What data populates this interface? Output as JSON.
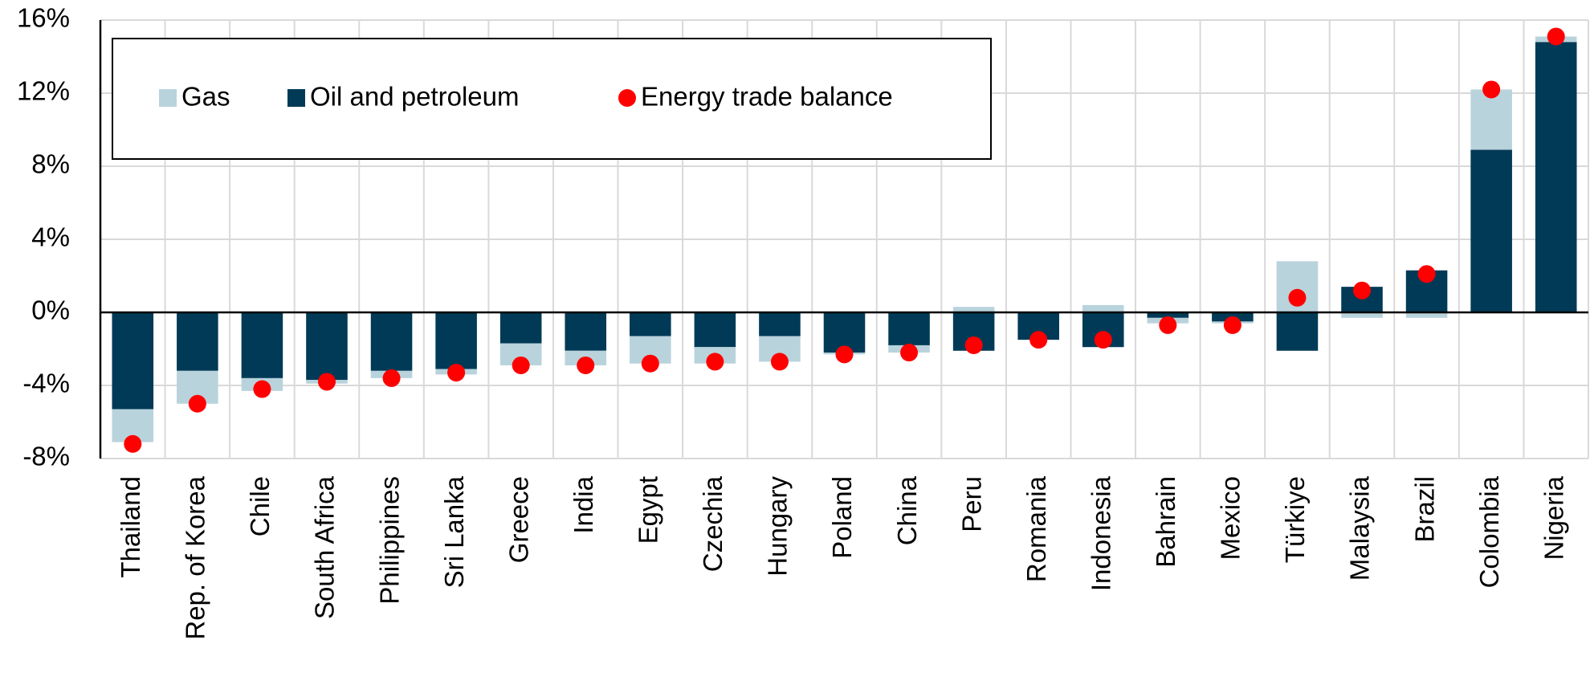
{
  "chart_data": {
    "type": "bar",
    "stacked": true,
    "categories": [
      "Thailand",
      "Rep. of Korea",
      "Chile",
      "South Africa",
      "Philippines",
      "Sri Lanka",
      "Greece",
      "India",
      "Egypt",
      "Czechia",
      "Hungary",
      "Poland",
      "China",
      "Peru",
      "Romania",
      "Indonesia",
      "Bahrain",
      "Mexico",
      "Türkiye",
      "Malaysia",
      "Brazil",
      "Colombia",
      "Nigeria"
    ],
    "series": [
      {
        "name": "Gas",
        "kind": "bar",
        "color": "#b9d3dc",
        "values": [
          -1.8,
          -1.8,
          -0.7,
          -0.2,
          -0.4,
          -0.3,
          -1.2,
          -0.8,
          -1.5,
          -0.9,
          -1.4,
          -0.1,
          -0.4,
          0.3,
          0,
          0.4,
          -0.3,
          -0.1,
          2.8,
          -0.3,
          -0.3,
          3.3,
          0.3
        ]
      },
      {
        "name": "Oil and petroleum",
        "kind": "bar",
        "color": "#003a57",
        "values": [
          -5.3,
          -3.2,
          -3.6,
          -3.7,
          -3.2,
          -3.1,
          -1.7,
          -2.1,
          -1.3,
          -1.9,
          -1.3,
          -2.2,
          -1.8,
          -2.1,
          -1.5,
          -1.9,
          -0.3,
          -0.5,
          -2.1,
          1.4,
          2.3,
          8.9,
          14.8
        ]
      },
      {
        "name": "Energy trade balance",
        "kind": "dot",
        "color": "#ff0000",
        "values": [
          -7.2,
          -5.0,
          -4.2,
          -3.8,
          -3.6,
          -3.3,
          -2.9,
          -2.9,
          -2.8,
          -2.7,
          -2.7,
          -2.3,
          -2.2,
          -1.8,
          -1.5,
          -1.5,
          -0.7,
          -0.7,
          0.8,
          1.2,
          2.1,
          12.2,
          15.1
        ]
      }
    ],
    "ylim": [
      -8,
      16
    ],
    "yticks": [
      {
        "value": -8,
        "label": "-8%"
      },
      {
        "value": -4,
        "label": "-4%"
      },
      {
        "value": 0,
        "label": "0%"
      },
      {
        "value": 4,
        "label": "4%"
      },
      {
        "value": 8,
        "label": "8%"
      },
      {
        "value": 12,
        "label": "12%"
      },
      {
        "value": 16,
        "label": "16%"
      }
    ],
    "grid": true
  }
}
